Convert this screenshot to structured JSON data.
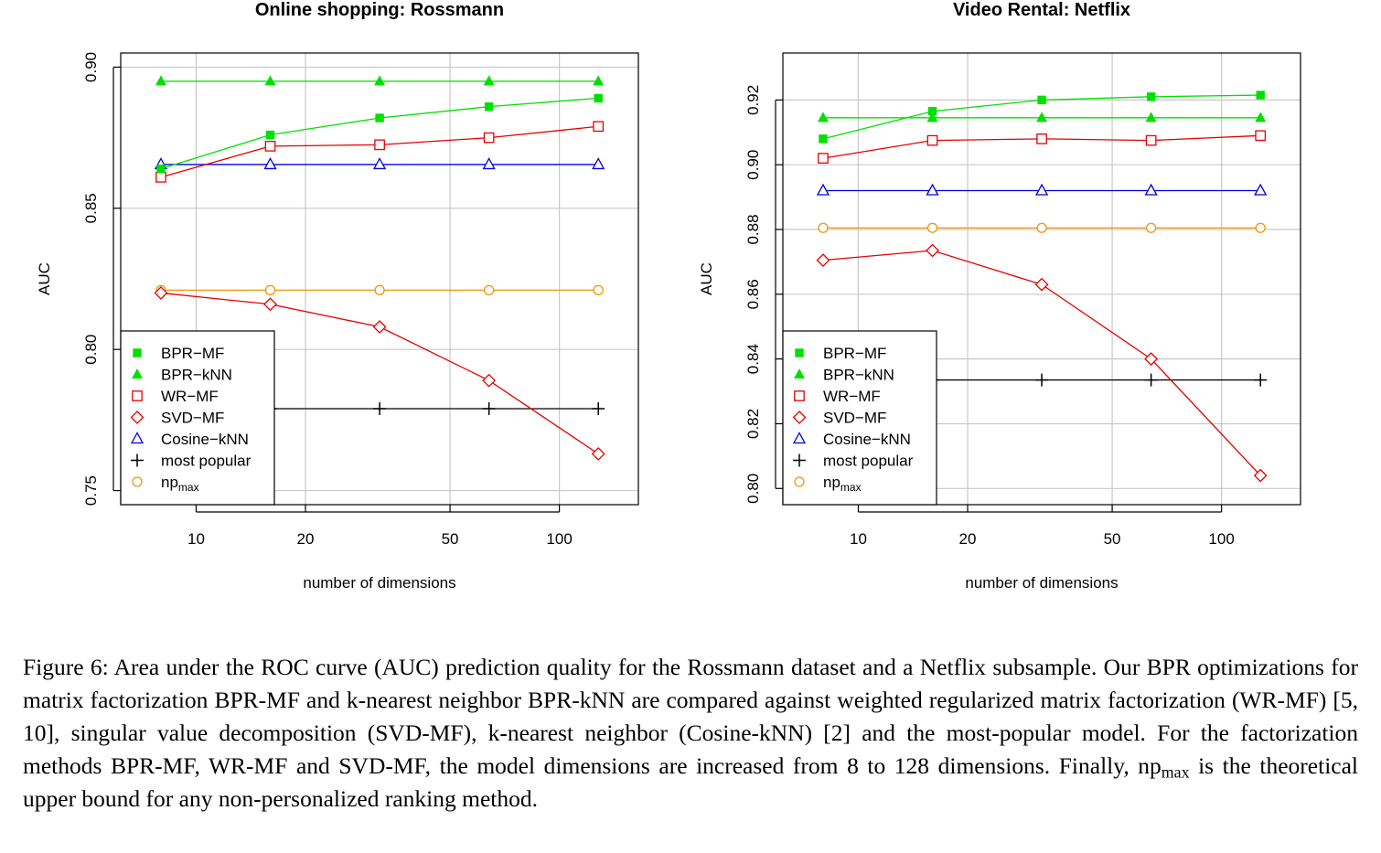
{
  "chart_data": [
    {
      "type": "line",
      "title": "Online shopping: Rossmann",
      "xlabel": "number of dimensions",
      "ylabel": "AUC",
      "x_scale": "log",
      "x": [
        8,
        16,
        32,
        64,
        128
      ],
      "xlim": [
        6.2,
        165
      ],
      "ylim": [
        0.745,
        0.905
      ],
      "xticks": [
        10,
        20,
        50,
        100
      ],
      "yticks": [
        0.75,
        0.8,
        0.85,
        0.9
      ],
      "ytick_labels": [
        "0.75",
        "0.80",
        "0.85",
        "0.90"
      ],
      "grid": true,
      "legend_position": "bottom-left",
      "series": [
        {
          "name": "BPR−MF",
          "marker": "filled-square",
          "color": "#00e000",
          "values": [
            0.864,
            0.876,
            0.882,
            0.886,
            0.889
          ]
        },
        {
          "name": "BPR−kNN",
          "marker": "filled-triangle",
          "color": "#00e000",
          "values": [
            0.895,
            0.895,
            0.895,
            0.895,
            0.895
          ]
        },
        {
          "name": "WR−MF",
          "marker": "open-square",
          "color": "#e60000",
          "values": [
            0.861,
            0.872,
            0.8725,
            0.875,
            0.879
          ]
        },
        {
          "name": "SVD−MF",
          "marker": "open-diamond",
          "color": "#e60000",
          "values": [
            0.82,
            0.816,
            0.808,
            0.789,
            0.763
          ]
        },
        {
          "name": "Cosine−kNN",
          "marker": "open-triangle",
          "color": "#0000e6",
          "values": [
            0.8655,
            0.8655,
            0.8655,
            0.8655,
            0.8655
          ]
        },
        {
          "name": "most popular",
          "marker": "plus",
          "color": "#000000",
          "values": [
            0.779,
            0.779,
            0.779,
            0.779,
            0.779
          ]
        },
        {
          "name": "np",
          "name_sub": "max",
          "marker": "open-circle",
          "color": "#f0960a",
          "values": [
            0.821,
            0.821,
            0.821,
            0.821,
            0.821
          ]
        }
      ]
    },
    {
      "type": "line",
      "title": "Video Rental: Netflix",
      "xlabel": "number of dimensions",
      "ylabel": "AUC",
      "x_scale": "log",
      "x": [
        8,
        16,
        32,
        64,
        128
      ],
      "xlim": [
        6.2,
        165
      ],
      "ylim": [
        0.795,
        0.9345
      ],
      "xticks": [
        10,
        20,
        50,
        100
      ],
      "yticks": [
        0.8,
        0.82,
        0.84,
        0.86,
        0.88,
        0.9,
        0.92
      ],
      "ytick_labels": [
        "0.80",
        "0.82",
        "0.84",
        "0.86",
        "0.88",
        "0.90",
        "0.92"
      ],
      "grid": true,
      "legend_position": "bottom-left",
      "series": [
        {
          "name": "BPR−MF",
          "marker": "filled-square",
          "color": "#00e000",
          "values": [
            0.908,
            0.9165,
            0.92,
            0.921,
            0.9215
          ]
        },
        {
          "name": "BPR−kNN",
          "marker": "filled-triangle",
          "color": "#00e000",
          "values": [
            0.9145,
            0.9145,
            0.9145,
            0.9145,
            0.9145
          ]
        },
        {
          "name": "WR−MF",
          "marker": "open-square",
          "color": "#e60000",
          "values": [
            0.902,
            0.9075,
            0.908,
            0.9075,
            0.909
          ]
        },
        {
          "name": "SVD−MF",
          "marker": "open-diamond",
          "color": "#e60000",
          "values": [
            0.8705,
            0.8735,
            0.863,
            0.84,
            0.804
          ]
        },
        {
          "name": "Cosine−kNN",
          "marker": "open-triangle",
          "color": "#0000e6",
          "values": [
            0.892,
            0.892,
            0.892,
            0.892,
            0.892
          ]
        },
        {
          "name": "most popular",
          "marker": "plus",
          "color": "#000000",
          "values": [
            0.8335,
            0.8335,
            0.8335,
            0.8335,
            0.8335
          ]
        },
        {
          "name": "np",
          "name_sub": "max",
          "marker": "open-circle",
          "color": "#f0960a",
          "values": [
            0.8805,
            0.8805,
            0.8805,
            0.8805,
            0.8805
          ]
        }
      ]
    }
  ],
  "caption": {
    "label": "Figure 6:",
    "text_before": "Area under the ROC curve (AUC) prediction quality for the Rossmann dataset and a Netflix subsample. Our BPR optimizations for matrix factorization BPR-MF and k-nearest neighbor BPR-kNN are compared against weighted regularized matrix factorization (WR-MF) [5, 10], singular value decomposition (SVD-MF), k-nearest neighbor (Cosine-kNN) [2] and the most-popular model. For the factorization methods BPR-MF, WR-MF and SVD-MF, the model dimensions are increased from 8 to 128 dimensions. Finally, np",
    "text_sub": "max",
    "text_after": "is the theoretical upper bound for any non-personalized ranking method."
  }
}
